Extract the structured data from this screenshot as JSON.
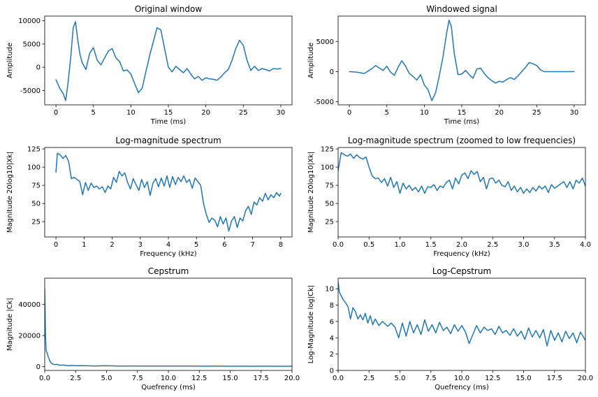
{
  "style": {
    "line_color": "#1f77b4",
    "axis_color": "#000000",
    "background": "#ffffff"
  },
  "chart_data": [
    {
      "type": "line",
      "title": "Original window",
      "xlabel": "Time (ms)",
      "ylabel": "Amplitude",
      "xlim": [
        -1.5,
        31.5
      ],
      "ylim": [
        -8100,
        11000
      ],
      "xticks": [
        0,
        5,
        10,
        15,
        20,
        25,
        30
      ],
      "yticks": [
        -5000,
        0,
        5000,
        10000
      ],
      "series": [
        {
          "x": [
            0,
            0.5,
            1,
            1.3,
            1.6,
            2,
            2.3,
            2.6,
            2.9,
            3.2,
            3.5,
            4,
            4.5,
            5,
            5.5,
            6,
            6.5,
            7,
            7.5,
            8,
            8.5,
            9,
            9.5,
            10,
            10.5,
            11,
            11.5,
            12,
            12.5,
            13,
            13.5,
            14,
            14.5,
            15,
            15.5,
            16,
            16.5,
            17,
            17.5,
            18,
            18.5,
            19,
            19.5,
            20,
            20.5,
            21,
            21.5,
            22,
            22.5,
            23,
            23.5,
            24,
            24.5,
            25,
            25.5,
            26,
            26.5,
            27,
            27.5,
            28,
            28.5,
            29,
            29.5,
            30
          ],
          "y": [
            -2700,
            -4500,
            -5800,
            -7200,
            -3500,
            2500,
            8500,
            9800,
            6000,
            2800,
            1000,
            -500,
            3000,
            4200,
            1500,
            500,
            2000,
            3500,
            4000,
            2000,
            1200,
            -800,
            -600,
            -1500,
            -3500,
            -5500,
            -4500,
            -1000,
            2500,
            5500,
            8500,
            8000,
            4000,
            0,
            -1000,
            200,
            -500,
            -1200,
            -300,
            -1500,
            -2500,
            -2000,
            -2800,
            -2300,
            -2500,
            -2600,
            -2800,
            -2100,
            -1200,
            -500,
            1500,
            4000,
            5800,
            4700,
            1500,
            -700,
            200,
            -700,
            -300,
            -500,
            -800,
            -300,
            -400,
            -300
          ]
        }
      ]
    },
    {
      "type": "line",
      "title": "Windowed signal",
      "xlabel": "Time (ms)",
      "ylabel": "Amplitude",
      "xlim": [
        -1.5,
        31.5
      ],
      "ylim": [
        -5500,
        9200
      ],
      "xticks": [
        0,
        5,
        10,
        15,
        20,
        25,
        30
      ],
      "yticks": [
        -5000,
        0,
        5000
      ],
      "series": [
        {
          "x": [
            0,
            1,
            2,
            3,
            3.5,
            4,
            4.5,
            5,
            5.5,
            6,
            6.5,
            7,
            7.5,
            8,
            8.5,
            9,
            9.5,
            10,
            10.5,
            11,
            11.5,
            12,
            12.5,
            13,
            13.3,
            13.6,
            14,
            14.5,
            15,
            15.5,
            16,
            16.5,
            17,
            17.5,
            18,
            18.5,
            19,
            19.5,
            20,
            20.5,
            21,
            21.5,
            22,
            22.5,
            23,
            23.5,
            24,
            24.5,
            25,
            25.5,
            26,
            26.5,
            27,
            28,
            29,
            30
          ],
          "y": [
            0,
            -100,
            -300,
            500,
            1000,
            600,
            200,
            900,
            -100,
            -600,
            700,
            1800,
            900,
            -300,
            -800,
            -1400,
            -500,
            -2200,
            -3000,
            -4800,
            -3500,
            -700,
            2500,
            6500,
            8500,
            7500,
            3000,
            -500,
            -400,
            200,
            -500,
            -1100,
            400,
            600,
            -300,
            -1000,
            -1500,
            -1900,
            -1600,
            -1700,
            -1300,
            -1000,
            -1300,
            -700,
            0,
            700,
            1500,
            1300,
            1000,
            300,
            0,
            0,
            0,
            0,
            0,
            0
          ]
        }
      ]
    },
    {
      "type": "line",
      "title": "Log-magnitude spectrum",
      "xlabel": "Frequency (kHz)",
      "ylabel": "Magnitude 20log10|Xk|",
      "xlim": [
        -0.4,
        8.4
      ],
      "ylim": [
        4,
        127
      ],
      "xticks": [
        0,
        1,
        2,
        3,
        4,
        5,
        6,
        7,
        8
      ],
      "yticks": [
        25,
        50,
        75,
        100,
        125
      ],
      "series": [
        {
          "x": [
            0,
            0.05,
            0.15,
            0.25,
            0.35,
            0.45,
            0.55,
            0.65,
            0.75,
            0.85,
            0.95,
            1.05,
            1.15,
            1.25,
            1.35,
            1.45,
            1.55,
            1.65,
            1.75,
            1.85,
            1.95,
            2.05,
            2.15,
            2.25,
            2.35,
            2.45,
            2.55,
            2.65,
            2.75,
            2.85,
            2.95,
            3.05,
            3.15,
            3.25,
            3.35,
            3.45,
            3.55,
            3.65,
            3.75,
            3.85,
            3.95,
            4.05,
            4.15,
            4.25,
            4.35,
            4.45,
            4.55,
            4.65,
            4.75,
            4.85,
            4.95,
            5.05,
            5.15,
            5.25,
            5.35,
            5.45,
            5.55,
            5.65,
            5.75,
            5.85,
            5.95,
            6.05,
            6.15,
            6.25,
            6.35,
            6.45,
            6.55,
            6.65,
            6.75,
            6.85,
            6.95,
            7.05,
            7.15,
            7.25,
            7.35,
            7.45,
            7.55,
            7.65,
            7.75,
            7.85,
            7.95,
            8
          ],
          "y": [
            93,
            119,
            117,
            112,
            116,
            108,
            84,
            86,
            83,
            80,
            62,
            79,
            68,
            78,
            72,
            74,
            70,
            73,
            65,
            74,
            70,
            86,
            79,
            94,
            88,
            92,
            79,
            70,
            84,
            76,
            68,
            83,
            72,
            80,
            61,
            78,
            84,
            73,
            85,
            74,
            88,
            72,
            87,
            76,
            86,
            80,
            88,
            79,
            83,
            71,
            85,
            80,
            75,
            50,
            35,
            24,
            30,
            27,
            18,
            32,
            22,
            30,
            12,
            26,
            32,
            17,
            30,
            26,
            40,
            46,
            35,
            52,
            48,
            58,
            53,
            64,
            55,
            62,
            58,
            65,
            60,
            64
          ]
        }
      ]
    },
    {
      "type": "line",
      "title": "Log-magnitude spectrum (zoomed to low frequencies)",
      "xlabel": "Frequency (kHz)",
      "ylabel": "Magnitude 20log10|Xk|",
      "xlim": [
        0,
        4
      ],
      "ylim": [
        4,
        127
      ],
      "xticks": [
        0,
        0.5,
        1,
        1.5,
        2,
        2.5,
        3,
        3.5,
        4
      ],
      "yticks": [
        25,
        50,
        75,
        100,
        125
      ],
      "series": [
        {
          "x": [
            0,
            0.05,
            0.1,
            0.15,
            0.2,
            0.25,
            0.3,
            0.35,
            0.4,
            0.45,
            0.5,
            0.55,
            0.6,
            0.65,
            0.7,
            0.75,
            0.8,
            0.85,
            0.9,
            0.95,
            1,
            1.05,
            1.1,
            1.15,
            1.2,
            1.25,
            1.3,
            1.35,
            1.4,
            1.45,
            1.5,
            1.55,
            1.6,
            1.65,
            1.7,
            1.75,
            1.8,
            1.85,
            1.9,
            1.95,
            2,
            2.05,
            2.1,
            2.15,
            2.2,
            2.25,
            2.3,
            2.35,
            2.4,
            2.45,
            2.5,
            2.55,
            2.6,
            2.65,
            2.7,
            2.75,
            2.8,
            2.85,
            2.9,
            2.95,
            3,
            3.05,
            3.1,
            3.15,
            3.2,
            3.25,
            3.3,
            3.35,
            3.4,
            3.45,
            3.5,
            3.55,
            3.6,
            3.65,
            3.7,
            3.75,
            3.8,
            3.85,
            3.9,
            3.95,
            4
          ],
          "y": [
            95,
            120,
            117,
            115,
            118,
            112,
            117,
            113,
            111,
            114,
            100,
            88,
            84,
            85,
            79,
            84,
            74,
            86,
            72,
            80,
            64,
            78,
            70,
            75,
            68,
            72,
            66,
            74,
            64,
            73,
            72,
            76,
            68,
            74,
            72,
            79,
            82,
            70,
            85,
            77,
            89,
            92,
            84,
            95,
            90,
            94,
            80,
            86,
            70,
            84,
            85,
            78,
            82,
            75,
            73,
            80,
            68,
            74,
            66,
            72,
            64,
            70,
            65,
            72,
            67,
            74,
            70,
            74,
            65,
            76,
            71,
            74,
            77,
            80,
            72,
            80,
            70,
            82,
            78,
            85,
            74
          ]
        }
      ]
    },
    {
      "type": "line",
      "title": "Cepstrum",
      "xlabel": "Quefrency (ms)",
      "ylabel": "Magnitude |Ck|",
      "xlim": [
        0,
        20
      ],
      "ylim": [
        -2500,
        57000
      ],
      "xticks": [
        0,
        2.5,
        5,
        7.5,
        10,
        12.5,
        15,
        17.5,
        20
      ],
      "yticks": [
        0,
        20000,
        40000
      ],
      "series": [
        {
          "x": [
            0,
            0.06,
            0.12,
            0.2,
            0.3,
            0.4,
            0.5,
            0.6,
            0.7,
            0.8,
            1,
            1.2,
            1.5,
            1.8,
            2.2,
            2.6,
            3,
            4,
            5,
            6,
            7,
            8,
            9,
            10,
            11,
            12,
            13,
            14,
            15,
            16,
            17,
            18,
            19,
            20
          ],
          "y": [
            50000,
            20000,
            10000,
            8800,
            6000,
            4000,
            2500,
            1800,
            1600,
            1200,
            1400,
            900,
            1000,
            600,
            700,
            500,
            600,
            400,
            500,
            300,
            400,
            350,
            300,
            350,
            280,
            300,
            250,
            280,
            220,
            260,
            200,
            230,
            200,
            210
          ]
        }
      ]
    },
    {
      "type": "line",
      "title": "Log-Cepstrum",
      "xlabel": "Quefrency (ms)",
      "ylabel": "Log-Magnitude log|Ck|",
      "xlim": [
        0,
        20
      ],
      "ylim": [
        0,
        11.3
      ],
      "xticks": [
        0,
        2.5,
        5,
        7.5,
        10,
        12.5,
        15,
        17.5,
        20
      ],
      "yticks": [
        0,
        2,
        4,
        6,
        8,
        10
      ],
      "series": [
        {
          "x": [
            0,
            0.1,
            0.2,
            0.4,
            0.6,
            0.8,
            1,
            1.2,
            1.4,
            1.6,
            1.8,
            2,
            2.2,
            2.4,
            2.6,
            2.8,
            3,
            3.3,
            3.6,
            4,
            4.3,
            4.6,
            4.9,
            5.2,
            5.5,
            5.8,
            6.1,
            6.4,
            6.7,
            7,
            7.3,
            7.6,
            7.9,
            8.2,
            8.5,
            8.8,
            9.1,
            9.4,
            9.7,
            10,
            10.3,
            10.6,
            10.9,
            11.2,
            11.5,
            11.8,
            12.1,
            12.4,
            12.7,
            13,
            13.3,
            13.6,
            13.9,
            14.2,
            14.5,
            14.8,
            15.1,
            15.4,
            15.7,
            16,
            16.3,
            16.6,
            16.9,
            17.2,
            17.5,
            17.8,
            18.1,
            18.4,
            18.7,
            19,
            19.3,
            19.6,
            20
          ],
          "y": [
            10.8,
            9.6,
            9.3,
            8.7,
            8.3,
            7.8,
            6.3,
            7.7,
            7.2,
            6.3,
            6.8,
            6.2,
            7.0,
            5.8,
            6.7,
            5.6,
            6.3,
            5.5,
            6.0,
            5.4,
            5.8,
            5.3,
            4.0,
            5.8,
            4.2,
            6.0,
            4.6,
            5.6,
            4.4,
            6.2,
            4.8,
            5.6,
            4.6,
            5.9,
            4.9,
            5.3,
            4.5,
            5.6,
            4.8,
            5.5,
            4.7,
            3.3,
            4.4,
            5.5,
            4.6,
            5.3,
            4.9,
            5.1,
            4.4,
            5.4,
            4.6,
            4.9,
            4.3,
            5.1,
            4.2,
            4.8,
            3.8,
            5.2,
            4.1,
            4.9,
            4.0,
            5.0,
            3.0,
            4.9,
            3.7,
            4.6,
            3.5,
            4.8,
            3.9,
            4.6,
            3.4,
            4.7,
            3.7
          ]
        }
      ]
    }
  ]
}
